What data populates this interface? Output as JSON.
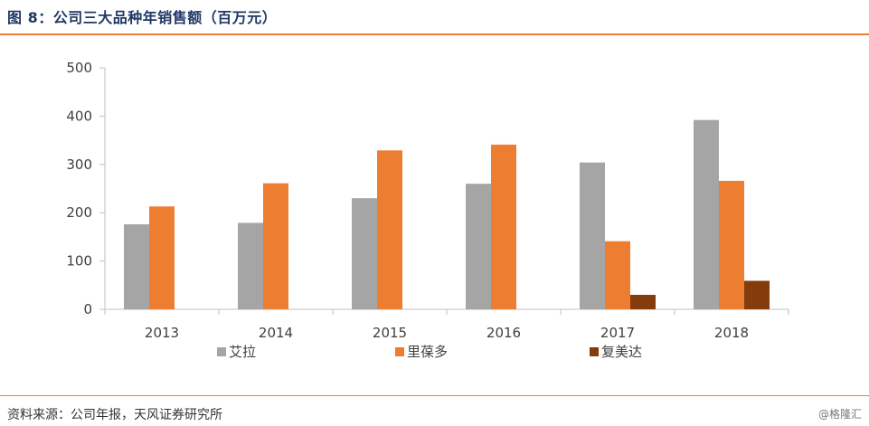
{
  "title": "图 8：公司三大品种年销售额（百万元）",
  "source": "资料来源：公司年报，天风证券研究所",
  "watermark": "@格隆汇",
  "colors": {
    "accent": "#ed7d31",
    "title": "#1f3864",
    "axis": "#bfbfbf"
  },
  "chart_data": {
    "type": "bar",
    "categories": [
      "2013",
      "2014",
      "2015",
      "2016",
      "2017",
      "2018"
    ],
    "series": [
      {
        "name": "艾拉",
        "color": "#a5a5a5",
        "values": [
          176,
          179,
          230,
          260,
          304,
          392
        ]
      },
      {
        "name": "里葆多",
        "color": "#ed7d31",
        "values": [
          213,
          261,
          329,
          341,
          141,
          266
        ]
      },
      {
        "name": "复美达",
        "color": "#843c0c",
        "values": [
          null,
          null,
          null,
          null,
          30,
          59
        ]
      }
    ],
    "ylim": [
      0,
      500
    ],
    "yticks": [
      0,
      100,
      200,
      300,
      400,
      500
    ],
    "grid": false,
    "legend": "bottom"
  }
}
